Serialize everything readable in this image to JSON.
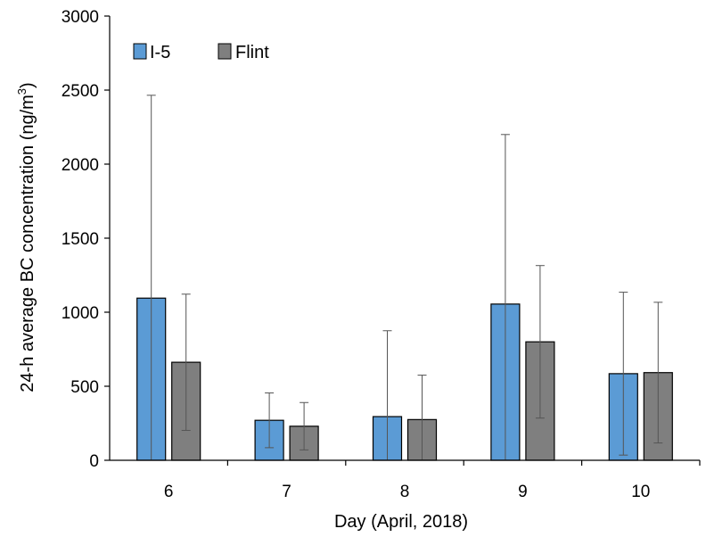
{
  "chart_data": {
    "type": "bar",
    "xlabel": "Day (April, 2018)",
    "ylabel": "24-h average BC concentration (ng/m",
    "ylabel_sup": "3",
    "ylabel_tail": ")",
    "categories": [
      "6",
      "7",
      "8",
      "9",
      "10"
    ],
    "ylim": [
      0,
      3000
    ],
    "yticks": [
      "0",
      "500",
      "1000",
      "1500",
      "2000",
      "2500",
      "3000"
    ],
    "legend_position": "top-left",
    "grid": false,
    "series": [
      {
        "name": "I-5",
        "color": "#5B9BD5",
        "values": [
          1095,
          270,
          295,
          1055,
          585
        ],
        "error": [
          1370,
          185,
          580,
          1145,
          550
        ]
      },
      {
        "name": "Flint",
        "color": "#7F7F7F",
        "values": [
          662,
          230,
          275,
          800,
          592
        ],
        "error": [
          460,
          160,
          300,
          515,
          475
        ]
      }
    ]
  }
}
